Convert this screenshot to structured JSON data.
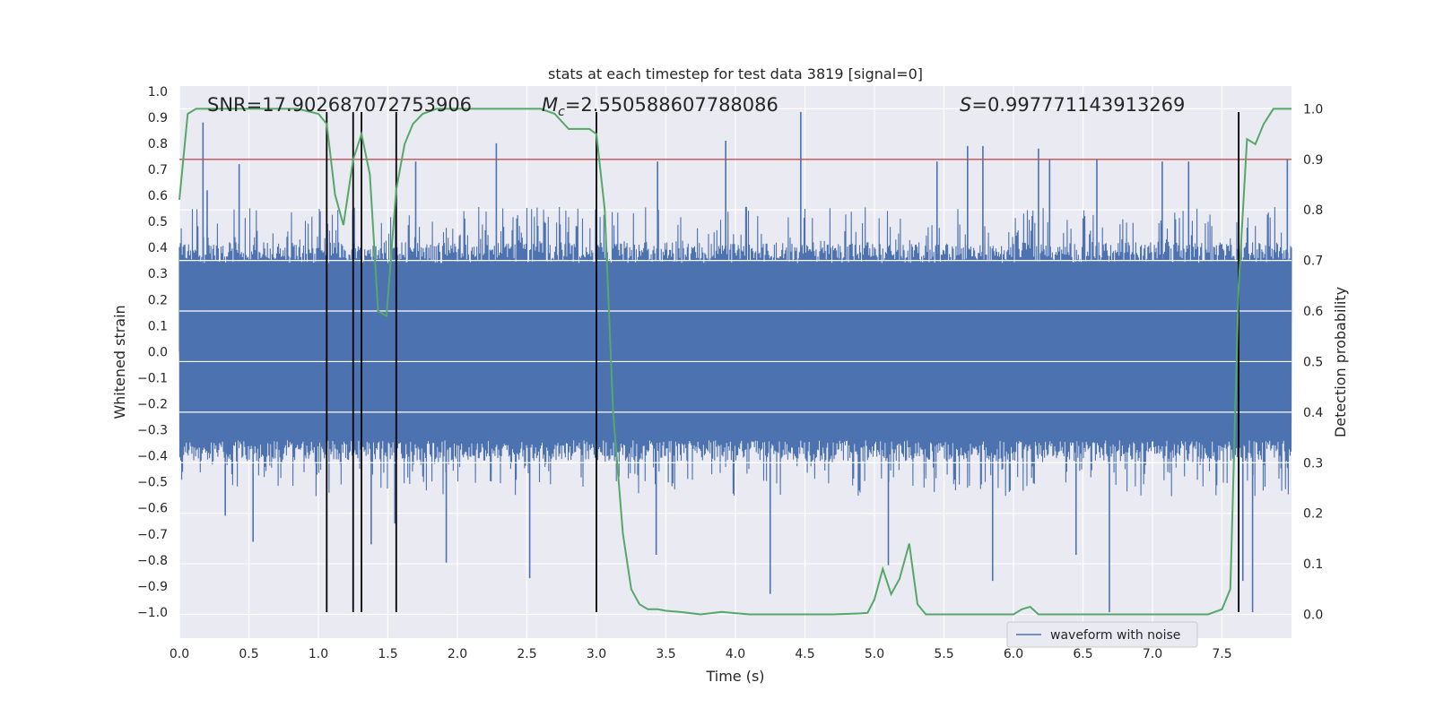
{
  "chart_data": {
    "type": "line",
    "title": "stats at each timestep for test data 3819 [signal=0]",
    "xlabel": "Time (s)",
    "ylabel": "Whitened strain",
    "y2label": "Detection probability",
    "xlim": [
      0.0,
      8.0
    ],
    "ylim": [
      -1.1,
      1.02
    ],
    "y2lim": [
      -0.047,
      1.045
    ],
    "xticks": [
      "0.0",
      "0.5",
      "1.0",
      "1.5",
      "2.0",
      "2.5",
      "3.0",
      "3.5",
      "4.0",
      "4.5",
      "5.0",
      "5.5",
      "6.0",
      "6.5",
      "7.0",
      "7.5"
    ],
    "yticks": [
      "1.0",
      "0.9",
      "0.8",
      "0.7",
      "0.6",
      "0.5",
      "0.4",
      "0.3",
      "0.2",
      "0.1",
      "0.0",
      "−0.1",
      "−0.2",
      "−0.3",
      "−0.4",
      "−0.5",
      "−0.6",
      "−0.7",
      "−0.8",
      "−0.9",
      "−1.0"
    ],
    "y2ticks": [
      "1.0",
      "0.9",
      "0.8",
      "0.7",
      "0.6",
      "0.5",
      "0.4",
      "0.3",
      "0.2",
      "0.1",
      "0.0"
    ],
    "annotations": {
      "snr": "SNR=17.902687072753906",
      "mc_symbol": "M",
      "mc_sub": "c",
      "mc_value": "=2.550588607788086",
      "s_symbol": "S",
      "s_value": "=0.997771143913269"
    },
    "legend": [
      {
        "label": "waveform with noise",
        "color": "#4c72b0"
      }
    ],
    "threshold": {
      "value": 0.9,
      "axis": "y2",
      "color": "#c44e52"
    },
    "vlines": {
      "x": [
        1.06,
        1.25,
        1.31,
        1.56,
        3.0,
        7.62
      ],
      "ymin": -1.0,
      "ymax": 0.92,
      "color": "#000000"
    },
    "waveform": {
      "name": "waveform with noise",
      "color": "#4c72b0",
      "core_amplitude": 0.34,
      "typical_peak": 0.58,
      "spikes": [
        {
          "x": 0.17,
          "y": 0.88
        },
        {
          "x": 0.2,
          "y": 0.62
        },
        {
          "x": 0.43,
          "y": 0.72
        },
        {
          "x": 0.33,
          "y": -0.63
        },
        {
          "x": 0.53,
          "y": -0.73
        },
        {
          "x": 1.55,
          "y": -0.66
        },
        {
          "x": 1.38,
          "y": -0.74
        },
        {
          "x": 1.7,
          "y": 0.73
        },
        {
          "x": 1.92,
          "y": -0.81
        },
        {
          "x": 2.28,
          "y": 0.8
        },
        {
          "x": 2.52,
          "y": -0.87
        },
        {
          "x": 3.44,
          "y": 0.73
        },
        {
          "x": 3.43,
          "y": -0.78
        },
        {
          "x": 3.93,
          "y": 0.81
        },
        {
          "x": 4.25,
          "y": -0.93
        },
        {
          "x": 4.47,
          "y": 0.92
        },
        {
          "x": 5.1,
          "y": -0.82
        },
        {
          "x": 5.45,
          "y": 0.73
        },
        {
          "x": 5.67,
          "y": 0.79
        },
        {
          "x": 5.78,
          "y": 0.79
        },
        {
          "x": 5.85,
          "y": -0.88
        },
        {
          "x": 6.18,
          "y": 0.78
        },
        {
          "x": 6.26,
          "y": 0.74
        },
        {
          "x": 6.69,
          "y": -1.0
        },
        {
          "x": 6.6,
          "y": 0.74
        },
        {
          "x": 6.45,
          "y": -0.78
        },
        {
          "x": 7.07,
          "y": 0.73
        },
        {
          "x": 7.26,
          "y": 0.73
        },
        {
          "x": 7.65,
          "y": -0.88
        },
        {
          "x": 7.72,
          "y": -1.0
        },
        {
          "x": 7.97,
          "y": 0.74
        }
      ]
    },
    "probability": {
      "name": "detection probability",
      "color": "#55a868",
      "x": [
        0.0,
        0.06,
        0.12,
        0.2,
        0.3,
        0.5,
        0.7,
        0.85,
        1.0,
        1.06,
        1.12,
        1.18,
        1.25,
        1.31,
        1.37,
        1.43,
        1.49,
        1.56,
        1.62,
        1.68,
        1.75,
        1.85,
        2.0,
        2.3,
        2.6,
        2.7,
        2.8,
        2.87,
        2.95,
        3.0,
        3.06,
        3.12,
        3.19,
        3.25,
        3.31,
        3.37,
        3.44,
        3.5,
        3.6,
        3.75,
        3.9,
        4.1,
        4.3,
        4.5,
        4.7,
        4.9,
        4.95,
        5.0,
        5.06,
        5.12,
        5.18,
        5.25,
        5.31,
        5.37,
        5.5,
        5.8,
        6.0,
        6.06,
        6.12,
        6.18,
        6.3,
        6.6,
        7.0,
        7.4,
        7.5,
        7.56,
        7.62,
        7.68,
        7.74,
        7.8,
        7.87,
        7.93,
        8.0
      ],
      "y": [
        0.82,
        0.99,
        1.0,
        1.0,
        1.0,
        1.0,
        1.0,
        1.0,
        0.99,
        0.97,
        0.83,
        0.77,
        0.9,
        0.95,
        0.87,
        0.6,
        0.59,
        0.84,
        0.93,
        0.97,
        0.99,
        1.0,
        1.0,
        1.0,
        1.0,
        0.99,
        0.96,
        0.96,
        0.96,
        0.95,
        0.8,
        0.4,
        0.16,
        0.05,
        0.02,
        0.01,
        0.01,
        0.007,
        0.005,
        0.0,
        0.005,
        0.0,
        0.0,
        0.0,
        0.0,
        0.002,
        0.003,
        0.03,
        0.09,
        0.04,
        0.07,
        0.14,
        0.02,
        0.0,
        0.0,
        0.0,
        0.0,
        0.01,
        0.015,
        0.0,
        0.0,
        0.0,
        0.0,
        0.0,
        0.01,
        0.05,
        0.65,
        0.94,
        0.93,
        0.97,
        1.0,
        1.0,
        1.0
      ]
    }
  }
}
